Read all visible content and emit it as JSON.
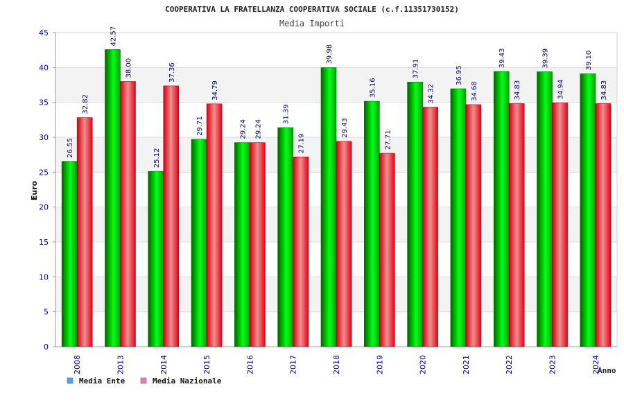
{
  "chart_data": {
    "type": "bar",
    "title": "COOPERATIVA LA FRATELLANZA COOPERATIVA SOCIALE (c.f.11351730152)",
    "subtitle": "Media Importi",
    "xlabel": "Anno",
    "ylabel": "Euro",
    "ylim": [
      0,
      45
    ],
    "yticks": [
      0,
      5,
      10,
      15,
      20,
      25,
      30,
      35,
      40,
      45
    ],
    "grid": true,
    "legend_position": "bottom-left",
    "categories": [
      "2008",
      "2013",
      "2014",
      "2015",
      "2016",
      "2017",
      "2018",
      "2019",
      "2020",
      "2021",
      "2022",
      "2023",
      "2024"
    ],
    "series": [
      {
        "name": "Media Ente",
        "color": "#00c800",
        "legend_color": "#5aa0e6",
        "values": [
          26.55,
          42.57,
          25.12,
          29.71,
          29.24,
          31.39,
          39.98,
          35.16,
          37.91,
          36.95,
          39.43,
          39.39,
          39.1
        ],
        "labels": [
          "26.55",
          "42.57",
          "25.12",
          "29.71",
          "29.24",
          "31.39",
          "39.98",
          "35.16",
          "37.91",
          "36.95",
          "39.43",
          "39.39",
          "39.10"
        ]
      },
      {
        "name": "Media Nazionale",
        "color": "#f00a1e",
        "legend_color": "#e080b0",
        "values": [
          32.82,
          38.0,
          37.36,
          34.79,
          29.24,
          27.19,
          29.43,
          27.71,
          34.32,
          34.68,
          34.83,
          34.94,
          34.83
        ],
        "labels": [
          "32.82",
          "38.00",
          "37.36",
          "34.79",
          "29.24",
          "27.19",
          "29.43",
          "27.71",
          "34.32",
          "34.68",
          "34.83",
          "34.94",
          "34.83"
        ]
      }
    ]
  }
}
